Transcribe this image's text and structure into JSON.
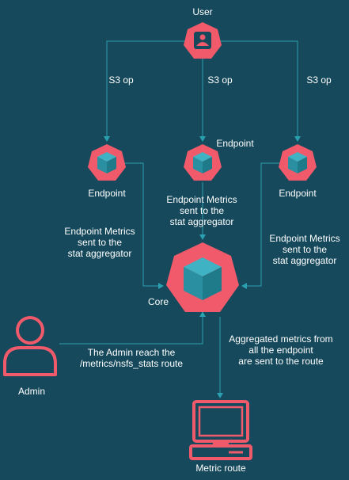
{
  "colors": {
    "background": "#15495b",
    "node": "#f05a6a",
    "node_dark": "#1b4e5e",
    "cube": "#2a8fa0",
    "cube_top": "#3fb2c3",
    "wire": "#2aa0b0",
    "text": "#ffffff"
  },
  "user": {
    "label": "User",
    "icon": "user-icon"
  },
  "s3_labels": [
    "S3 op",
    "S3 op",
    "S3 op"
  ],
  "endpoints": {
    "left": "Endpoint",
    "center": "Endpoint",
    "right": "Endpoint"
  },
  "metrics_left": [
    "Endpoint Metrics",
    "sent to the",
    "stat aggregator"
  ],
  "metrics_center": [
    "Endpoint Metrics",
    "sent to the",
    "stat aggregator"
  ],
  "metrics_right": [
    "Endpoint Metrics",
    "sent to the",
    "stat aggregator"
  ],
  "core": {
    "label": "Core",
    "icon": "cube-icon"
  },
  "aggregated": [
    "Aggregated metrics from",
    "all the endpoint",
    "are sent to the route"
  ],
  "admin": {
    "label": "Admin",
    "icon": "person-icon",
    "route_text": [
      "The Admin reach the",
      "/metrics/nsfs_stats route"
    ]
  },
  "metric_route": {
    "label": "Metric route",
    "icon": "monitor-icon"
  }
}
